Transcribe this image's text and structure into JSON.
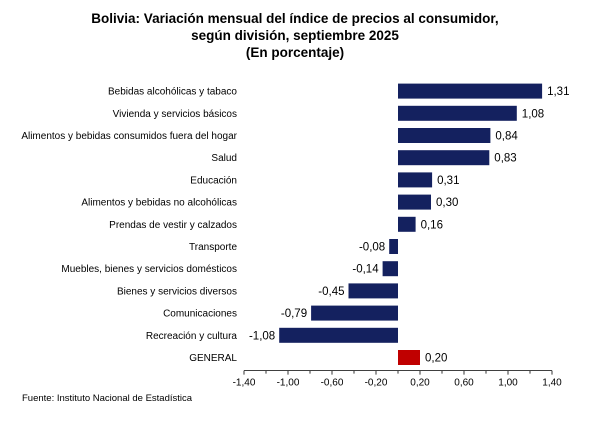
{
  "chart_data": {
    "type": "bar",
    "orientation": "horizontal",
    "title_lines": [
      "Bolivia: Variación mensual del índice de precios al consumidor,",
      "según división, septiembre 2025",
      "(En porcentaje)"
    ],
    "categories": [
      "Bebidas alcohólicas y tabaco",
      "Vivienda y servicios básicos",
      "Alimentos y bebidas consumidos fuera del hogar",
      "Salud",
      "Educación",
      "Alimentos y bebidas no alcohólicas",
      "Prendas de vestir y calzados",
      "Transporte",
      "Muebles, bienes y servicios domésticos",
      "Bienes y servicios diversos",
      "Comunicaciones",
      "Recreación y cultura",
      "GENERAL"
    ],
    "values": [
      1.31,
      1.08,
      0.84,
      0.83,
      0.31,
      0.3,
      0.16,
      -0.08,
      -0.14,
      -0.45,
      -0.79,
      -1.08,
      0.2
    ],
    "value_labels": [
      "1,31",
      "1,08",
      "0,84",
      "0,83",
      "0,31",
      "0,30",
      "0,16",
      "-0,08",
      "-0,14",
      "-0,45",
      "-0,79",
      "-1,08",
      "0,20"
    ],
    "xlim": [
      -1.4,
      1.4
    ],
    "x_ticks": [
      -1.4,
      -1.0,
      -0.6,
      -0.2,
      0.2,
      0.6,
      1.0,
      1.4
    ],
    "x_tick_labels": [
      "-1,40",
      "-1,00",
      "-0,60",
      "-0,20",
      "0,20",
      "0,60",
      "1,00",
      "1,40"
    ],
    "grid": false,
    "legend": "none",
    "colors": {
      "bar": "#14215f",
      "highlight": "#c00000"
    },
    "highlight_category": "GENERAL"
  },
  "source": "Fuente: Instituto Nacional de Estadística"
}
